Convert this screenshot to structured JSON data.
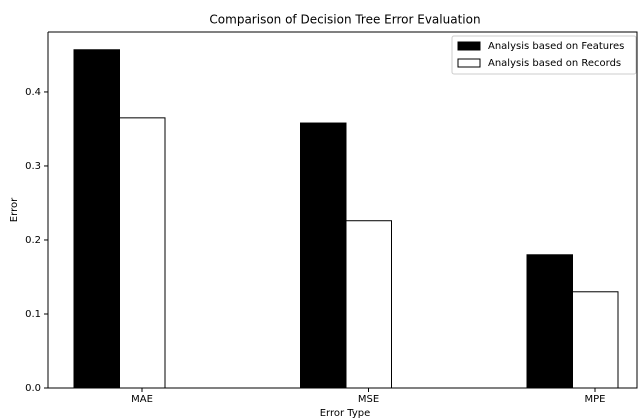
{
  "chart_data": {
    "type": "bar",
    "title": "Comparison of Decision Tree Error Evaluation",
    "x_label": "Error Type",
    "y_label": "Error",
    "categories": [
      "MAE",
      "MSE",
      "MPE"
    ],
    "series": [
      {
        "name": "Analysis based on Features",
        "color": "#000000",
        "values": [
          0.457,
          0.358,
          0.18
        ]
      },
      {
        "name": "Analysis based on Records",
        "color": "#ffffff",
        "values": [
          0.365,
          0.226,
          0.13
        ]
      }
    ],
    "ylim": [
      0,
      0.481
    ],
    "yticks": [
      {
        "value": 0,
        "label": "0.0"
      },
      0.1,
      0.2,
      0.3,
      0.4
    ],
    "legend": "upper right"
  }
}
